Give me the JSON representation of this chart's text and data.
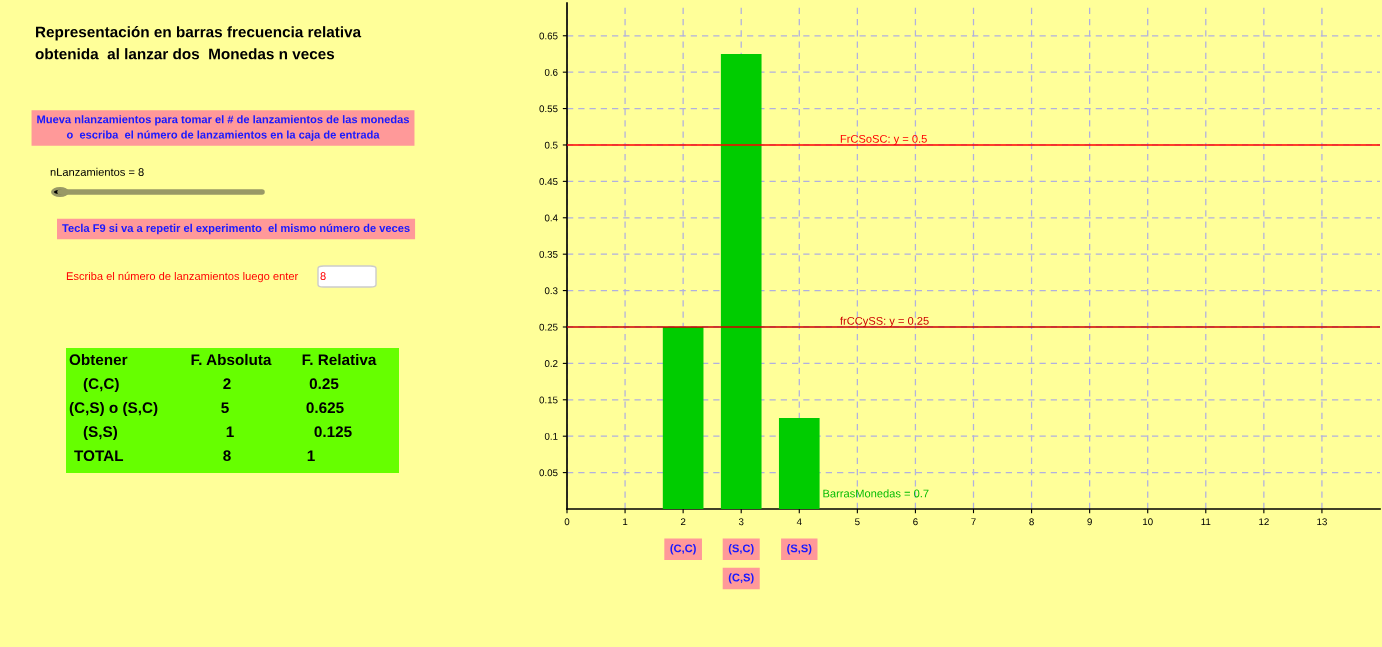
{
  "chart_data": {
    "type": "bar",
    "title": "Representación en barras frecuencia relativa\nobtenida  al lanzar dos  Monedas n veces",
    "x": [
      2,
      3,
      4
    ],
    "values": [
      0.25,
      0.625,
      0.125
    ],
    "color": "#00cc00",
    "xlim": [
      0,
      14
    ],
    "ylim": [
      0,
      0.695
    ],
    "xticks": [
      0,
      1,
      2,
      3,
      4,
      5,
      6,
      7,
      8,
      9,
      10,
      11,
      12,
      13
    ],
    "yticks": [
      0.05,
      0.1,
      0.15,
      0.2,
      0.25,
      0.3,
      0.35,
      0.4,
      0.45,
      0.5,
      0.55,
      0.6,
      0.65
    ],
    "grid": true,
    "ref_lines": [
      {
        "axis": "y",
        "value": 0.5,
        "label": "FrCSoSC: y = 0.5",
        "color": "#ff0000"
      },
      {
        "axis": "y",
        "value": 0.25,
        "label": "frCCySS: y = 0.25",
        "color": "#cc0000"
      }
    ],
    "annotations": [
      "Mueva nlanzamientos para tomar el # de lanzamientos de las monedas\no  escriba  el número de lanzamientos en la caja de entrada",
      "nLanzamientos = 8",
      "Tecla F9 si va a repetir el experimento  el mismo número de veces",
      "Escriba el número de lanzamientos luego enter",
      "8",
      "Obtener",
      "F. Absoluta",
      "F. Relativa",
      "(C,C)",
      "2",
      "0.25",
      "(C,S) o (S,C)",
      "5",
      "0.625",
      "(S,S)",
      "1",
      "0.125",
      "TOTAL",
      "8",
      "1",
      "(C,C)",
      "(S,C)",
      "(C,S)",
      "(S,S)",
      "BarrasMonedas = 0.7"
    ]
  }
}
